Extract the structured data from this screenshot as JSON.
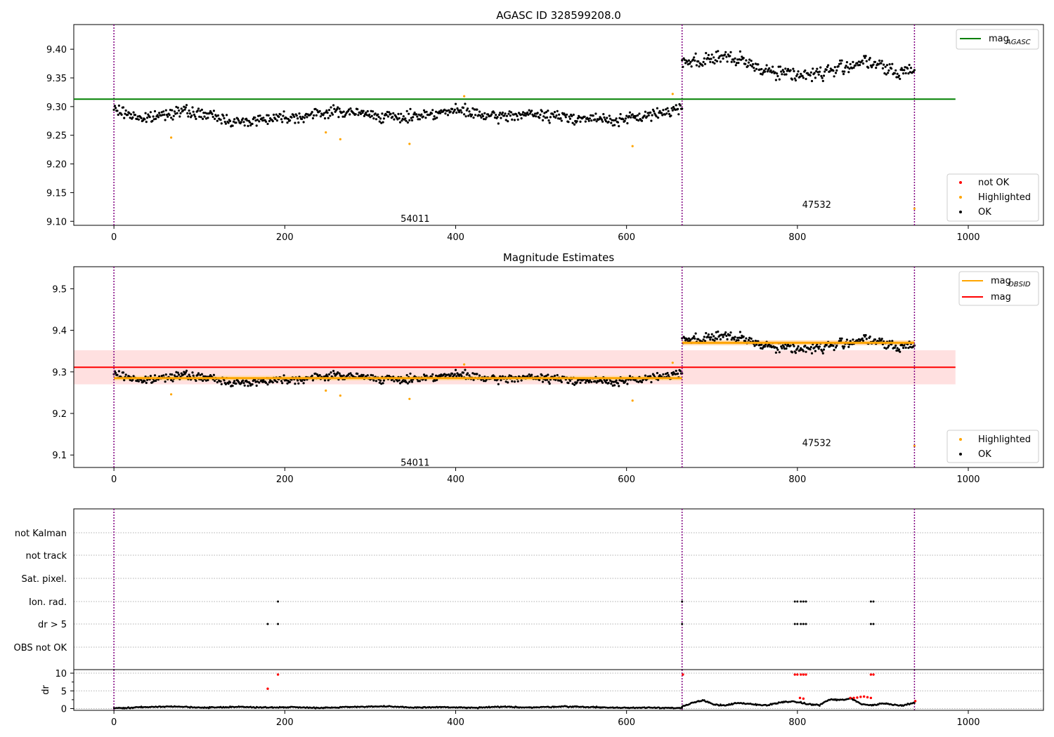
{
  "colors": {
    "ok": "#000000",
    "highlighted": "#ffa500",
    "not_ok": "#ff0000",
    "mag_agasc": "#008000",
    "mag_obsid": "#ffa500",
    "mag": "#ff0000",
    "mag_band": "#ffe0e0",
    "obsid_band": "#ffdcb4",
    "obsid_boundary": "#800080"
  },
  "chart_data": [
    {
      "type": "scatter",
      "title": "AGASC ID 328599208.0",
      "xlim": [
        -47,
        1088
      ],
      "ylim": [
        9.093,
        9.443
      ],
      "xticks": [
        "0",
        "200",
        "400",
        "600",
        "800",
        "1000"
      ],
      "yticks": [
        "9.10",
        "9.15",
        "9.20",
        "9.25",
        "9.30",
        "9.35",
        "9.40"
      ],
      "ytick_values": [
        9.1,
        9.15,
        9.2,
        9.25,
        9.3,
        9.35,
        9.4
      ],
      "legend_upper": {
        "position": "top-right",
        "entries": [
          {
            "main": "mag",
            "sub": "AGASC"
          }
        ]
      },
      "legend_lower": {
        "position": "bottom-right",
        "entries": [
          "not OK",
          "Highlighted",
          "OK"
        ]
      },
      "obsid_labels": [
        {
          "text": "54011",
          "x": 332,
          "y": 9.105
        },
        {
          "text": "47532",
          "x": 802,
          "y": 9.13
        }
      ],
      "obsid_boundaries": [
        0,
        665,
        937
      ],
      "reference_lines": [
        {
          "name": "mag_agasc",
          "y": 9.313,
          "x": [
            -47,
            985
          ]
        }
      ],
      "segments": [
        {
          "x": [
            0,
            665
          ],
          "anchors": [
            9.295,
            9.278,
            9.293,
            9.285,
            9.272,
            9.281,
            9.283,
            9.292,
            9.287,
            9.28,
            9.288,
            9.293,
            9.281,
            9.287,
            9.283,
            9.279,
            9.276,
            9.285,
            9.298
          ],
          "scatter": 0.006
        },
        {
          "x": [
            665,
            937
          ],
          "anchors": [
            9.382,
            9.378,
            9.388,
            9.381,
            9.372,
            9.362,
            9.358,
            9.355,
            9.36,
            9.368,
            9.379,
            9.372,
            9.357,
            9.367
          ],
          "scatter": 0.008
        }
      ],
      "highlighted_points": [
        [
          67,
          9.246
        ],
        [
          248,
          9.255
        ],
        [
          265,
          9.243
        ],
        [
          346,
          9.235
        ],
        [
          410,
          9.318
        ],
        [
          607,
          9.231
        ],
        [
          654,
          9.322
        ],
        [
          937,
          9.122
        ]
      ],
      "not_ok_points": []
    },
    {
      "type": "scatter",
      "title": "Magnitude Estimates",
      "xlim": [
        -47,
        1088
      ],
      "ylim": [
        9.07,
        9.553
      ],
      "xticks": [
        "0",
        "200",
        "400",
        "600",
        "800",
        "1000"
      ],
      "yticks": [
        "9.1",
        "9.2",
        "9.3",
        "9.4",
        "9.5"
      ],
      "ytick_values": [
        9.1,
        9.2,
        9.3,
        9.4,
        9.5
      ],
      "legend_upper": {
        "position": "top-right",
        "entries": [
          {
            "main": "mag",
            "sub": "OBSID"
          },
          {
            "main": "mag",
            "sub": ""
          }
        ]
      },
      "legend_lower": {
        "position": "bottom-right",
        "entries": [
          "Highlighted",
          "OK"
        ]
      },
      "obsid_labels": [
        {
          "text": "54011",
          "x": 332,
          "y": 9.083
        },
        {
          "text": "47532",
          "x": 802,
          "y": 9.13
        }
      ],
      "obsid_boundaries": [
        0,
        665,
        937
      ],
      "mag_band": {
        "y": [
          9.27,
          9.352
        ],
        "x": [
          -47,
          985
        ]
      },
      "reference_lines": [
        {
          "name": "mag",
          "y": 9.311,
          "x": [
            -47,
            985
          ]
        }
      ],
      "obsid_means": [
        {
          "x": [
            0,
            665
          ],
          "y": 9.285,
          "band": [
            9.279,
            9.291
          ]
        },
        {
          "x": [
            665,
            937
          ],
          "y": 9.37,
          "band": [
            9.364,
            9.376
          ]
        }
      ],
      "segments": [
        {
          "x": [
            0,
            665
          ],
          "anchors": [
            9.295,
            9.278,
            9.293,
            9.285,
            9.272,
            9.281,
            9.283,
            9.292,
            9.287,
            9.28,
            9.288,
            9.293,
            9.281,
            9.287,
            9.283,
            9.279,
            9.276,
            9.285,
            9.298
          ],
          "scatter": 0.006
        },
        {
          "x": [
            665,
            937
          ],
          "anchors": [
            9.382,
            9.378,
            9.388,
            9.381,
            9.372,
            9.362,
            9.358,
            9.355,
            9.36,
            9.368,
            9.379,
            9.372,
            9.357,
            9.367
          ],
          "scatter": 0.008
        }
      ],
      "highlighted_points": [
        [
          67,
          9.246
        ],
        [
          248,
          9.255
        ],
        [
          265,
          9.243
        ],
        [
          346,
          9.235
        ],
        [
          410,
          9.318
        ],
        [
          607,
          9.231
        ],
        [
          654,
          9.322
        ],
        [
          937,
          9.122
        ]
      ]
    },
    {
      "type": "scatter",
      "title": "",
      "flag_rows": [
        "not Kalman",
        "not track",
        "Sat. pixel.",
        "Ion. rad.",
        "dr > 5",
        "OBS not OK"
      ],
      "flag_points": {
        "Ion. rad.": [
          192,
          665,
          797,
          800,
          804,
          807,
          810,
          886,
          889
        ],
        "dr > 5": [
          180,
          192,
          665,
          797,
          800,
          804,
          807,
          810,
          886,
          889
        ]
      },
      "xlim": [
        -47,
        1088
      ],
      "xticks": [
        "0",
        "200",
        "400",
        "600",
        "800",
        "1000"
      ]
    },
    {
      "type": "scatter",
      "title": "",
      "ylabel": "dr",
      "xlim": [
        -47,
        1088
      ],
      "ylim": [
        -0.5,
        11
      ],
      "yticks": [
        "0",
        "5",
        "10"
      ],
      "ytick_values": [
        0,
        5,
        10
      ],
      "xticks": [
        "0",
        "200",
        "400",
        "600",
        "800",
        "1000"
      ],
      "obsid_boundaries": [
        0,
        665,
        937
      ],
      "segments": [
        {
          "x": [
            0,
            665
          ],
          "anchors": [
            0.1,
            0.4,
            0.6,
            0.2,
            0.5,
            0.3,
            0.4,
            0.2,
            0.5,
            0.6,
            0.3,
            0.4,
            0.2,
            0.5,
            0.3,
            0.6,
            0.4,
            0.2,
            0.3,
            0.1
          ],
          "scatter": 0.1
        },
        {
          "x": [
            665,
            937
          ],
          "anchors": [
            0.5,
            1.6,
            2.4,
            1.2,
            0.8,
            1.5,
            1.4,
            1.1,
            0.9,
            1.6,
            2.0,
            1.8,
            1.2,
            1.0,
            2.6,
            2.4,
            2.8,
            1.3,
            0.9,
            1.5,
            1.1,
            0.9,
            1.8
          ],
          "scatter": 0.12
        }
      ],
      "not_ok_points": [
        [
          180,
          5.6
        ],
        [
          192,
          9.6
        ],
        [
          666,
          9.6
        ],
        [
          797,
          9.6
        ],
        [
          800,
          9.6
        ],
        [
          804,
          9.6
        ],
        [
          807,
          9.6
        ],
        [
          810,
          9.6
        ],
        [
          803,
          3.0
        ],
        [
          807,
          2.8
        ],
        [
          886,
          9.6
        ],
        [
          889,
          9.6
        ],
        [
          862,
          3.0
        ],
        [
          866,
          3.0
        ],
        [
          870,
          3.1
        ],
        [
          874,
          3.3
        ],
        [
          878,
          3.4
        ],
        [
          882,
          3.2
        ],
        [
          886,
          3.0
        ],
        [
          938,
          2.1
        ]
      ]
    }
  ]
}
